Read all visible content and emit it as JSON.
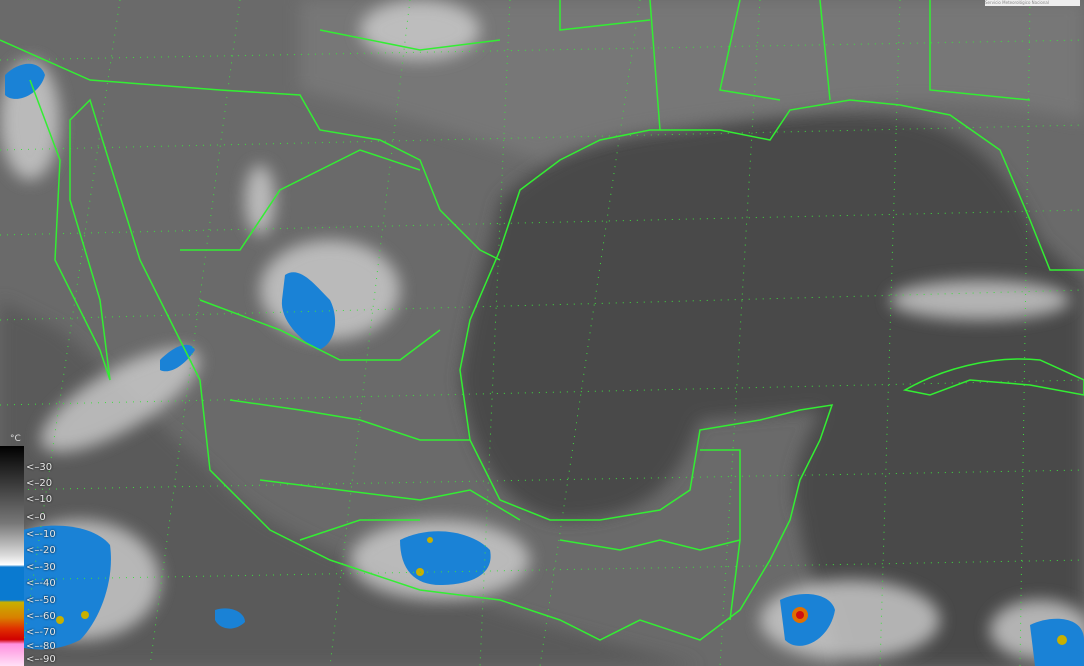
{
  "legend": {
    "unit": "°C",
    "labels": [
      "<–30",
      "<–20",
      "<–10",
      "<–0",
      "<–-10",
      "<–-20",
      "<–-30",
      "<–-40",
      "<–-50",
      "<–-60",
      "<–-70",
      "<–-80",
      "<–-90"
    ],
    "colors": {
      "warm": "#000000",
      "cold": "#ffffff",
      "blue": "#0a7ad0",
      "yellow": "#c8b000",
      "orange": "#d88000",
      "red": "#d00000",
      "pink": "#ff90e0"
    }
  },
  "caption": "Servicio Meteorológico Nacional",
  "border_color": "#33ee33"
}
